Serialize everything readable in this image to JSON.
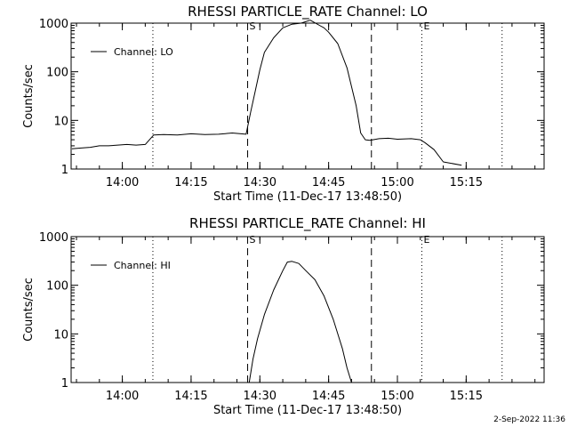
{
  "chart_data": [
    {
      "type": "line",
      "title": "RHESSI PARTICLE_RATE Channel: LO",
      "xlabel": "Start Time (11-Dec-17 13:48:50)",
      "ylabel": "Counts/sec",
      "y_scale": "log",
      "ylim": [
        1,
        1000
      ],
      "xlim": [
        "13:48:50",
        "15:32:00"
      ],
      "x_ticks": [
        "14:00",
        "14:15",
        "14:30",
        "14:45",
        "15:00",
        "15:15"
      ],
      "y_ticks": [
        "1",
        "10",
        "100",
        "1000"
      ],
      "legend": {
        "position": "top-left"
      },
      "markers": [
        {
          "label": "",
          "time": "14:06:40",
          "style": "dotted"
        },
        {
          "label": "S",
          "time": "14:27:20",
          "style": "dashed"
        },
        {
          "label": "",
          "time": "14:54:20",
          "style": "dashed"
        },
        {
          "label": "E",
          "time": "15:05:20",
          "style": "dotted"
        },
        {
          "label": "",
          "time": "15:22:50",
          "style": "dotted"
        }
      ],
      "series": [
        {
          "name": "Channel: LO",
          "x": [
            "13:49:00",
            "13:51:00",
            "13:53:00",
            "13:55:00",
            "13:57:00",
            "13:59:00",
            "14:01:00",
            "14:03:00",
            "14:05:00",
            "14:06:50",
            "14:09:00",
            "14:12:00",
            "14:15:00",
            "14:18:00",
            "14:21:00",
            "14:24:00",
            "14:27:00",
            "14:28:00",
            "14:29:00",
            "14:30:00",
            "14:31:00",
            "14:33:00",
            "14:35:00",
            "14:37:00",
            "14:39:00",
            "14:41:00",
            "14:43:00",
            "14:44:00",
            "14:45:00",
            "14:47:00",
            "14:49:00",
            "14:51:00",
            "14:52:00",
            "14:53:00",
            "14:54:00",
            "14:56:00",
            "14:58:00",
            "15:00:00",
            "15:03:00",
            "15:05:00",
            "15:06:00",
            "15:08:00",
            "15:10:00",
            "15:14:00"
          ],
          "values": [
            2.6,
            2.7,
            2.8,
            3.0,
            3.0,
            3.1,
            3.2,
            3.1,
            3.2,
            5.0,
            5.1,
            5.0,
            5.3,
            5.1,
            5.2,
            5.5,
            5.2,
            15,
            40,
            110,
            250,
            500,
            800,
            950,
            1000,
            1150,
            900,
            800,
            650,
            380,
            120,
            20,
            5.5,
            4.0,
            3.9,
            4.2,
            4.3,
            4.1,
            4.2,
            4.0,
            3.5,
            2.5,
            1.4,
            1.2
          ]
        }
      ]
    },
    {
      "type": "line",
      "title": "RHESSI PARTICLE_RATE Channel: HI",
      "xlabel": "Start Time (11-Dec-17 13:48:50)",
      "ylabel": "Counts/sec",
      "y_scale": "log",
      "ylim": [
        1,
        1000
      ],
      "xlim": [
        "13:48:50",
        "15:32:00"
      ],
      "x_ticks": [
        "14:00",
        "14:15",
        "14:30",
        "14:45",
        "15:00",
        "15:15"
      ],
      "y_ticks": [
        "1",
        "10",
        "100",
        "1000"
      ],
      "legend": {
        "position": "top-left"
      },
      "markers": [
        {
          "label": "",
          "time": "14:06:40",
          "style": "dotted"
        },
        {
          "label": "S",
          "time": "14:27:20",
          "style": "dashed"
        },
        {
          "label": "",
          "time": "14:54:20",
          "style": "dashed"
        },
        {
          "label": "E",
          "time": "15:05:20",
          "style": "dotted"
        },
        {
          "label": "",
          "time": "15:22:50",
          "style": "dotted"
        }
      ],
      "series": [
        {
          "name": "Channel: HI",
          "x": [
            "14:27:40",
            "14:28:30",
            "14:29:30",
            "14:31:00",
            "14:33:00",
            "14:35:00",
            "14:36:00",
            "14:37:00",
            "14:38:30",
            "14:40:00",
            "14:42:00",
            "14:44:00",
            "14:46:00",
            "14:48:00",
            "14:49:00",
            "14:50:00"
          ],
          "values": [
            1.0,
            3.0,
            8,
            25,
            80,
            200,
            300,
            310,
            280,
            200,
            130,
            60,
            20,
            5,
            2,
            1.0
          ]
        }
      ]
    }
  ],
  "footer": {
    "timestamp": "2-Sep-2022 11:36"
  }
}
